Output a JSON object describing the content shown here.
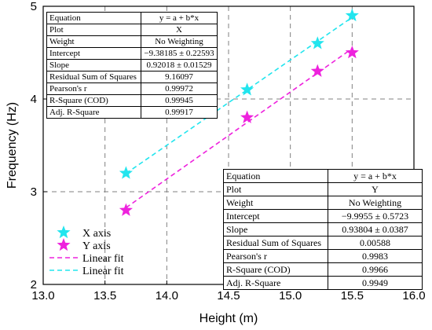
{
  "chart_data": {
    "type": "scatter",
    "xlabel": "Height (m)",
    "ylabel": "Frequency (Hz)",
    "xlim": [
      13.0,
      16.0
    ],
    "ylim": [
      2,
      5
    ],
    "x_ticks": [
      "13.0",
      "13.5",
      "14.0",
      "14.5",
      "15.0",
      "15.5",
      "16.0"
    ],
    "y_ticks": [
      "2",
      "3",
      "4",
      "5"
    ],
    "grid": true,
    "grid_style": "dashed",
    "legend_position": "bottom-left",
    "series": [
      {
        "name": "X axis",
        "marker": "star",
        "color": "#22e5ee",
        "x": [
          13.67,
          14.65,
          15.22,
          15.5
        ],
        "y": [
          3.2,
          4.1,
          4.6,
          4.9
        ]
      },
      {
        "name": "Y axis",
        "marker": "star",
        "color": "#ee22dd",
        "x": [
          13.67,
          14.65,
          15.22,
          15.5
        ],
        "y": [
          2.8,
          3.8,
          4.3,
          4.5
        ]
      }
    ],
    "fits": [
      {
        "name": "Linear fit",
        "color": "#ee22dd",
        "style": "dashed",
        "of_series": "Y axis",
        "intercept": -9.9955,
        "slope": 0.93804,
        "x_range": [
          13.67,
          15.5
        ]
      },
      {
        "name": "Linear fit",
        "color": "#22e5ee",
        "style": "dashed",
        "of_series": "X axis",
        "intercept": -9.38185,
        "slope": 0.92018,
        "x_range": [
          13.67,
          15.5
        ]
      }
    ],
    "fit_tables": [
      {
        "id": "x",
        "rows": [
          {
            "key": "Equation",
            "value": "y = a + b*x"
          },
          {
            "key": "Plot",
            "value": "X"
          },
          {
            "key": "Weight",
            "value": "No Weighting"
          },
          {
            "key": "Intercept",
            "value": "−9.38185 ± 0.22593"
          },
          {
            "key": "Slope",
            "value": "0.92018 ± 0.01529"
          },
          {
            "key": "Residual Sum of Squares",
            "value": "9.16097"
          },
          {
            "key": "Pearson's r",
            "value": "0.99972"
          },
          {
            "key": "R-Square (COD)",
            "value": "0.99945"
          },
          {
            "key": "Adj. R-Square",
            "value": "0.99917"
          }
        ]
      },
      {
        "id": "y",
        "rows": [
          {
            "key": "Equation",
            "value": "y = a + b*x"
          },
          {
            "key": "Plot",
            "value": "Y"
          },
          {
            "key": "Weight",
            "value": "No Weighting"
          },
          {
            "key": "Intercept",
            "value": "−9.9955 ± 0.5723"
          },
          {
            "key": "Slope",
            "value": "0.93804 ± 0.0387"
          },
          {
            "key": "Residual Sum of Squares",
            "value": "0.00588"
          },
          {
            "key": "Pearson's r",
            "value": "0.9983"
          },
          {
            "key": "R-Square (COD)",
            "value": "0.9966"
          },
          {
            "key": "Adj. R-Square",
            "value": "0.9949"
          }
        ]
      }
    ],
    "legend": [
      {
        "label": "X axis",
        "kind": "star",
        "color": "#22e5ee"
      },
      {
        "label": "Y axis",
        "kind": "star",
        "color": "#ee22dd"
      },
      {
        "label": "Linear fit",
        "kind": "dash",
        "color": "#ee22dd"
      },
      {
        "label": "Linear fit",
        "kind": "dash",
        "color": "#22e5ee"
      }
    ]
  }
}
